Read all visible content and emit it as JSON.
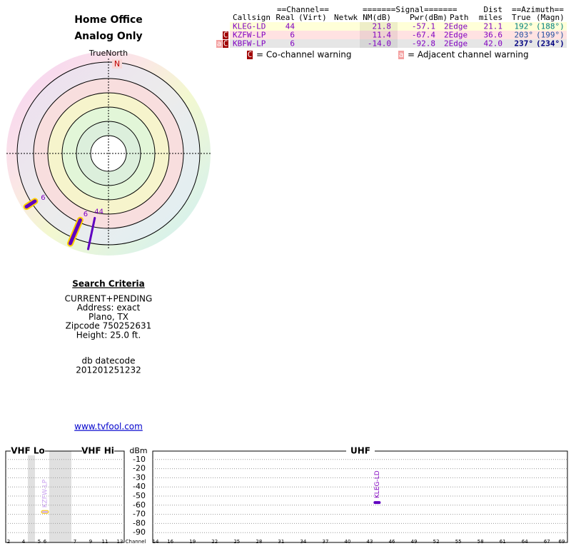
{
  "header": {
    "title": "Home Office",
    "subtitle": "Analog Only"
  },
  "polar": {
    "north_label": "TrueNorth",
    "north_marker": "N"
  },
  "table": {
    "group_headers": [
      "==Channel==",
      "=======Signal=======",
      "Dist",
      "==Azimuth=="
    ],
    "columns": [
      "Callsign",
      "Real",
      "(Virt)",
      "Netwk",
      "NM(dB)",
      "Pwr(dBm)",
      "Path",
      "miles",
      "True",
      "(Magn)"
    ],
    "rows": [
      {
        "warnings": [],
        "callsign": "KLEG-LD",
        "real": "44",
        "nm": "21.8",
        "pwr": "-57.1",
        "path": "2Edge",
        "dist": "21.1",
        "true_az": "192°",
        "magn_az": "(188°)"
      },
      {
        "warnings": [
          "C"
        ],
        "callsign": "KZFW-LP",
        "real": "6",
        "nm": "11.4",
        "pwr": "-67.4",
        "path": "2Edge",
        "dist": "36.6",
        "true_az": "203°",
        "magn_az": "(199°)"
      },
      {
        "warnings": [
          "a",
          "C"
        ],
        "callsign": "KBFW-LP",
        "real": "6",
        "nm": "-14.0",
        "pwr": "-92.8",
        "path": "2Edge",
        "dist": "42.0",
        "true_az": "237°",
        "magn_az": "(234°)"
      }
    ]
  },
  "legend": [
    {
      "symbol": "C",
      "text": "= Co-channel warning"
    },
    {
      "symbol": "a",
      "text": "= Adjacent channel warning"
    }
  ],
  "search": {
    "title": "Search Criteria",
    "lines": [
      "CURRENT+PENDING",
      "Address: exact",
      "Plano, TX",
      "Zipcode 750252631",
      "Height: 25.0 ft."
    ]
  },
  "db": {
    "label": "db datecode",
    "value": "201201251232"
  },
  "link": "www.tvfool.com",
  "spectrum": {
    "bands": [
      "VHF Lo",
      "VHF Hi",
      "UHF"
    ],
    "y_label": "dBm",
    "x_label": "Channel",
    "ylim": [
      -100,
      0
    ],
    "yticks": [
      -10,
      -20,
      -30,
      -40,
      -50,
      -60,
      -70,
      -80,
      -90
    ],
    "vhf_channels": [
      2,
      4,
      5,
      6,
      7,
      9,
      11,
      13
    ],
    "uhf_channels": [
      14,
      16,
      19,
      22,
      25,
      28,
      31,
      34,
      37,
      40,
      43,
      46,
      49,
      52,
      55,
      58,
      61,
      64,
      67,
      69
    ],
    "uhf_xlim": [
      14,
      69
    ],
    "stations": [
      {
        "label": "KZFW-LP",
        "channel": 6,
        "dbm": -67.4
      },
      {
        "label": "KLEG-LD",
        "channel": 44,
        "dbm": -57.1
      }
    ]
  }
}
